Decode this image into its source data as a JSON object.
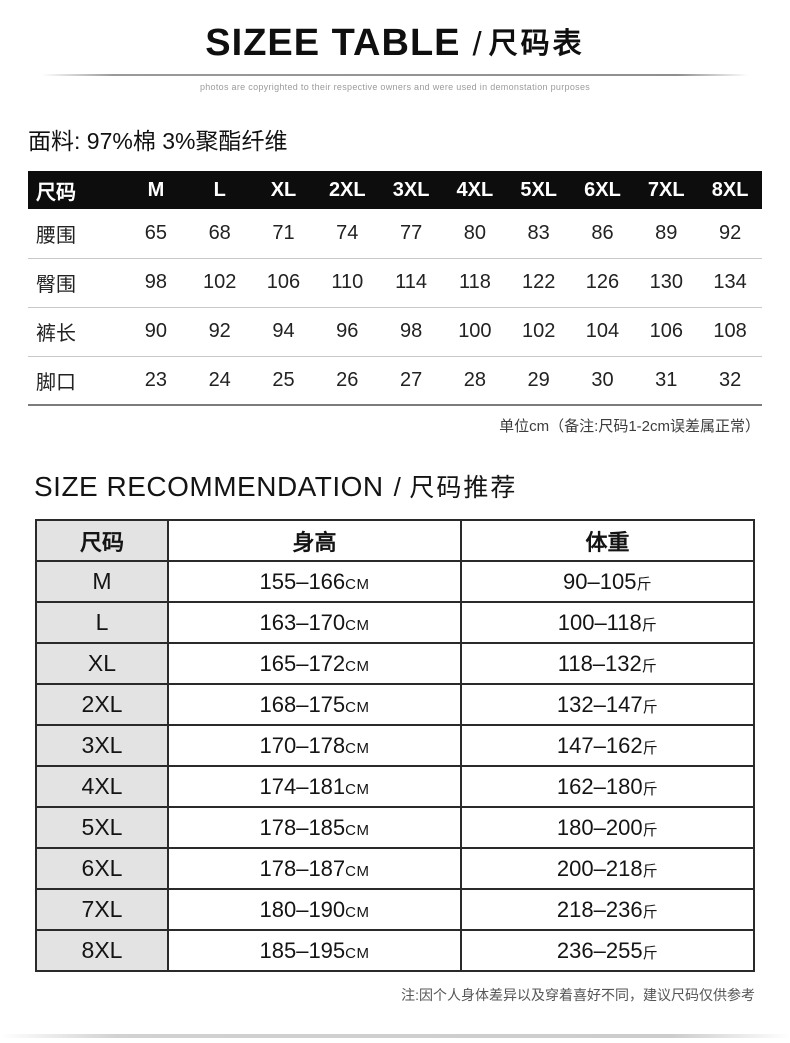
{
  "header": {
    "title_en": "SIZEE TABLE",
    "title_divider": "/",
    "title_zh": "尺码表",
    "copyright_note": "photos are copyrighted to their respective owners and were used in demonstation purposes"
  },
  "fabric_note": "面料: 97%棉 3%聚酯纤维",
  "size_table": {
    "columns": [
      "尺码",
      "M",
      "L",
      "XL",
      "2XL",
      "3XL",
      "4XL",
      "5XL",
      "6XL",
      "7XL",
      "8XL"
    ],
    "rows": [
      {
        "label": "腰围",
        "values": [
          "65",
          "68",
          "71",
          "74",
          "77",
          "80",
          "83",
          "86",
          "89",
          "92"
        ]
      },
      {
        "label": "臀围",
        "values": [
          "98",
          "102",
          "106",
          "110",
          "114",
          "118",
          "122",
          "126",
          "130",
          "134"
        ]
      },
      {
        "label": "裤长",
        "values": [
          "90",
          "92",
          "94",
          "96",
          "98",
          "100",
          "102",
          "104",
          "106",
          "108"
        ]
      },
      {
        "label": "脚口",
        "values": [
          "23",
          "24",
          "25",
          "26",
          "27",
          "28",
          "29",
          "30",
          "31",
          "32"
        ]
      }
    ],
    "unit_note": "单位cm（备注:尺码1-2cm误差属正常）"
  },
  "recommendation": {
    "title_en": "SIZE RECOMMENDATION",
    "title_divider": "/",
    "title_zh": "尺码推荐",
    "columns": [
      "尺码",
      "身高",
      "体重"
    ],
    "rows": [
      {
        "size": "M",
        "height": "155–166",
        "height_unit": "CM",
        "weight": "90–105",
        "weight_unit": "斤"
      },
      {
        "size": "L",
        "height": "163–170",
        "height_unit": "CM",
        "weight": "100–118",
        "weight_unit": "斤"
      },
      {
        "size": "XL",
        "height": "165–172",
        "height_unit": "CM",
        "weight": "118–132",
        "weight_unit": "斤"
      },
      {
        "size": "2XL",
        "height": "168–175",
        "height_unit": "CM",
        "weight": "132–147",
        "weight_unit": "斤"
      },
      {
        "size": "3XL",
        "height": "170–178",
        "height_unit": "CM",
        "weight": "147–162",
        "weight_unit": "斤"
      },
      {
        "size": "4XL",
        "height": "174–181",
        "height_unit": "CM",
        "weight": "162–180",
        "weight_unit": "斤"
      },
      {
        "size": "5XL",
        "height": "178–185",
        "height_unit": "CM",
        "weight": "180–200",
        "weight_unit": "斤"
      },
      {
        "size": "6XL",
        "height": "178–187",
        "height_unit": "CM",
        "weight": "200–218",
        "weight_unit": "斤"
      },
      {
        "size": "7XL",
        "height": "180–190",
        "height_unit": "CM",
        "weight": "218–236",
        "weight_unit": "斤"
      },
      {
        "size": "8XL",
        "height": "185–195",
        "height_unit": "CM",
        "weight": "236–255",
        "weight_unit": "斤"
      }
    ],
    "footnote": "注:因个人身体差异以及穿着喜好不同，建议尺码仅供参考"
  },
  "colors": {
    "size_table_header_bg": "#0d0d0d",
    "size_table_header_text": "#ffffff",
    "rec_table_border": "#2a2a2a",
    "rec_table_label_bg": "#e3e3e3",
    "page_bg": "#ffffff"
  }
}
